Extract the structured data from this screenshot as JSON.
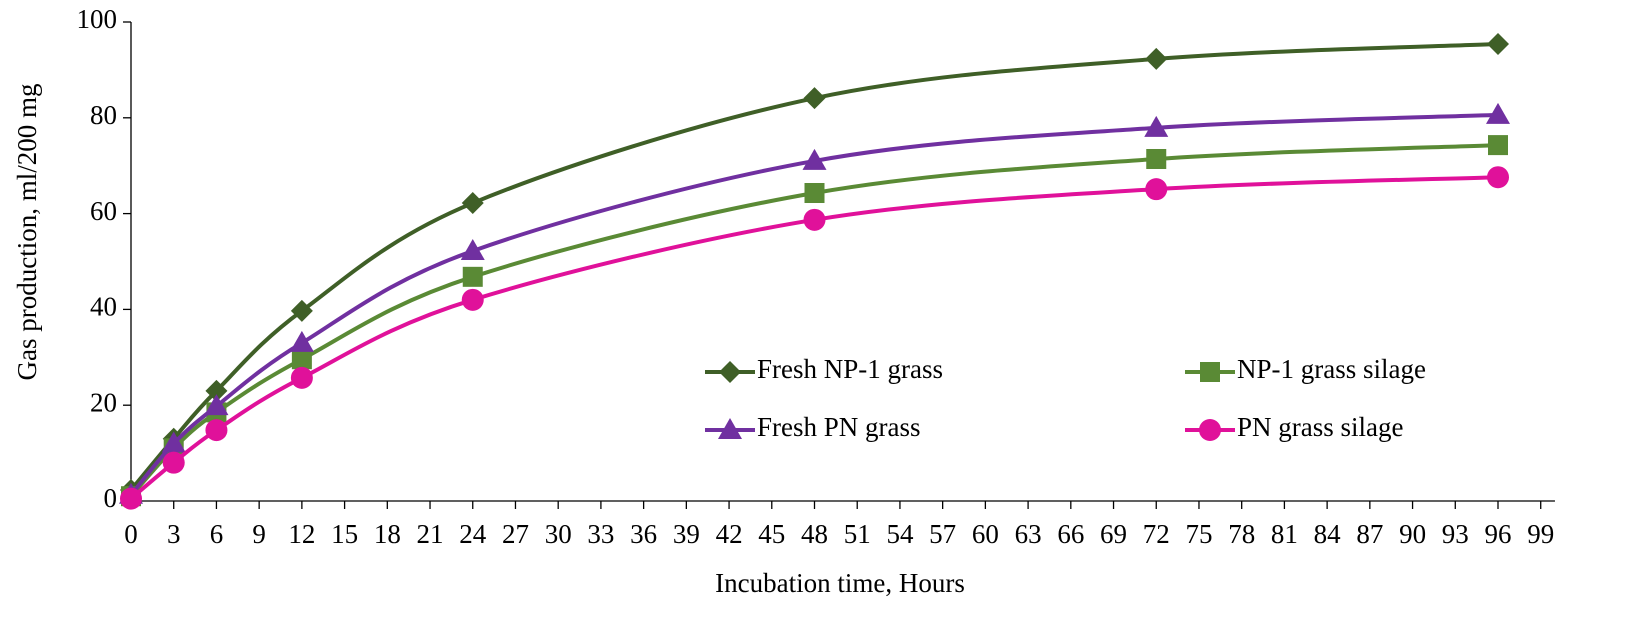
{
  "chart_data": {
    "type": "line",
    "x_label": "Incubation  time, Hours",
    "y_label": "Gas production,  ml/200 mg",
    "x": [
      0,
      3,
      6,
      12,
      24,
      48,
      72,
      96
    ],
    "series": [
      {
        "name": "Fresh NP-1 grass",
        "color": "#3f5f27",
        "marker": "diamond",
        "values": [
          2.3,
          13,
          23,
          39.7,
          62.2,
          84.1,
          92.3,
          95.4
        ]
      },
      {
        "name": "NP-1 grass silage",
        "color": "#5a8a35",
        "marker": "square",
        "values": [
          1,
          11,
          18.5,
          29.6,
          46.8,
          64.3,
          71.4,
          74.3
        ]
      },
      {
        "name": "Fresh PN grass",
        "color": "#7030a0",
        "marker": "triangle",
        "values": [
          1.3,
          12,
          19.8,
          33,
          52.2,
          71,
          77.9,
          80.6
        ]
      },
      {
        "name": "PN grass silage",
        "color": "#e0119a",
        "marker": "circle",
        "values": [
          0.5,
          8,
          14.8,
          25.7,
          42,
          58.7,
          65.1,
          67.6
        ]
      }
    ],
    "xlim": [
      0,
      100
    ],
    "xticks": [
      0,
      3,
      6,
      9,
      12,
      15,
      18,
      21,
      24,
      27,
      30,
      33,
      36,
      39,
      42,
      45,
      48,
      51,
      54,
      57,
      60,
      63,
      66,
      69,
      72,
      75,
      78,
      81,
      84,
      87,
      90,
      93,
      96,
      99
    ],
    "ylim": [
      0,
      100
    ],
    "yticks": [
      0,
      20,
      40,
      60,
      80,
      100
    ],
    "grid": false,
    "legend": "inside"
  }
}
